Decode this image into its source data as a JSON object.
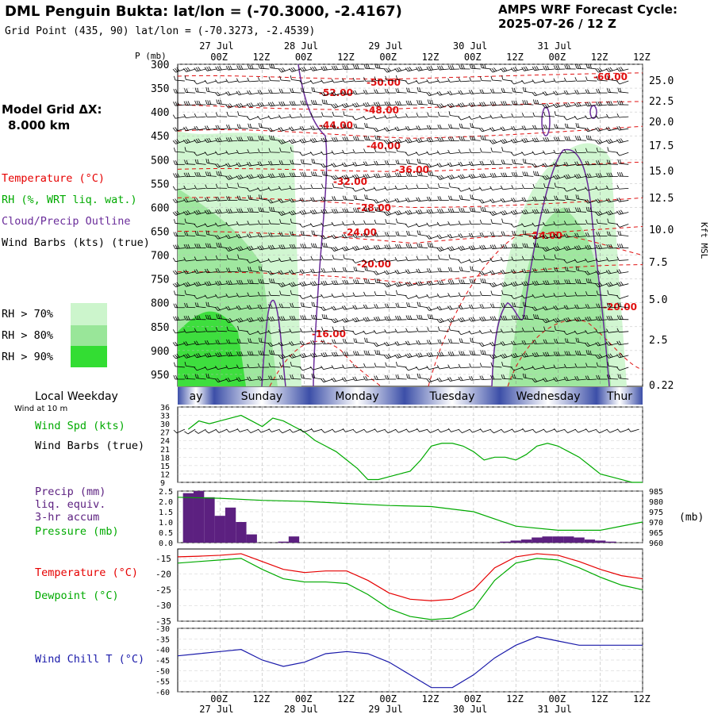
{
  "header": {
    "title": "DML Penguin Bukta:  lat/lon = (-70.3000, -2.4167)",
    "subtitle": "Grid Point (435, 90) lat/lon = (-70.3273, -2.4539)",
    "cycle_line1": "AMPS WRF Forecast Cycle:",
    "cycle_line2": "2025-07-26 / 12  Z"
  },
  "left_panel": {
    "model_grid_label": "Model Grid ΔX:",
    "model_grid_value": "8.000 km",
    "temperature_label": "Temperature (°C)",
    "rh_label": "RH (%, WRT liq. wat.)",
    "cloud_label": "Cloud/Precip Outline",
    "wind_label": "Wind Barbs (kts) (true)",
    "rh_legend": [
      {
        "label": "RH > 70%",
        "color": "#ccf5cc"
      },
      {
        "label": "RH > 80%",
        "color": "#99e699"
      },
      {
        "label": "RH > 90%",
        "color": "#33dd33"
      }
    ],
    "local_weekday": "Local Weekday",
    "wind_at": "Wind at 10 m",
    "wind_spd_label": "Wind Spd (kts)",
    "wind_barbs_label": "Wind Barbs (true)",
    "precip_label_1": "Precip (mm)",
    "precip_label_2": "liq. equiv.",
    "precip_label_3": "3-hr accum",
    "pressure_label": "Pressure (mb)",
    "temp2_label": "Temperature (°C)",
    "dewpoint_label": "Dewpoint (°C)",
    "windchill_label": "Wind Chill T (°C)"
  },
  "colors": {
    "temperature": "#e60000",
    "rh": "#00aa00",
    "cloud": "#6a2c9a",
    "wind": "#000000",
    "precip": "#5c2080",
    "windchill": "#1a1aaa",
    "temp_contour": "#e01010",
    "weekday_band": "#3c4fa8"
  },
  "time_axis": {
    "top_dates": [
      "27 Jul",
      "28 Jul",
      "29 Jul",
      "30 Jul",
      "31 Jul"
    ],
    "hours": [
      "00Z",
      "12Z",
      "00Z",
      "12Z",
      "00Z",
      "12Z",
      "00Z",
      "12Z",
      "00Z",
      "12Z"
    ],
    "bottom_dates": [
      "27 Jul",
      "28 Jul",
      "29 Jul",
      "30 Jul",
      "31 Jul"
    ],
    "weekdays": [
      "ay",
      "Sunday",
      "Monday",
      "Tuesday",
      "Wednesday",
      "Thur"
    ]
  },
  "chart_data": [
    {
      "type": "heatmap",
      "panel": "time-height cross-section",
      "y_left_label": "P (mb)",
      "y_left_ticks": [
        "300",
        "350",
        "400",
        "450",
        "500",
        "550",
        "600",
        "650",
        "700",
        "750",
        "800",
        "850",
        "900",
        "950"
      ],
      "y_right_label": "Kft MSL",
      "y_right_ticks": [
        "25.0",
        "22.5",
        "20.0",
        "17.5",
        "15.0",
        "12.5",
        "10.0",
        "7.5",
        "5.0",
        "2.5",
        "0.22"
      ],
      "temperature_contour_labels": [
        "-60.00",
        "-52.00",
        "-50.00",
        "-48.00",
        "-44.00",
        "-40.00",
        "-36.00",
        "-32.00",
        "-28.00",
        "-24.00",
        "-20.00",
        "-16.00",
        "-24.00",
        "-20.00",
        "-60.00"
      ]
    },
    {
      "type": "line",
      "panel": "wind speed",
      "ylabel": "Wind Spd (kts)",
      "y_ticks": [
        "36",
        "33",
        "30",
        "27",
        "24",
        "21",
        "18",
        "15",
        "12",
        "9"
      ],
      "ylim": [
        9,
        36
      ],
      "x_hours": [
        -9,
        -6,
        -3,
        0,
        3,
        6,
        9,
        12,
        15,
        18,
        21,
        24,
        27,
        30,
        33,
        36,
        39,
        42,
        45,
        48,
        51,
        54,
        57,
        60,
        63,
        66,
        69,
        72,
        75,
        78,
        81,
        84,
        87,
        90,
        93,
        96,
        99,
        102,
        105,
        108,
        111,
        114,
        117,
        120
      ],
      "values": [
        28,
        31,
        30,
        31,
        32,
        33,
        31,
        29,
        32,
        31,
        29,
        27,
        24,
        22,
        20,
        17,
        14,
        10,
        10,
        11,
        12,
        13,
        17,
        22,
        23,
        23,
        22,
        20,
        17,
        18,
        18,
        17,
        19,
        22,
        23,
        22,
        20,
        18,
        15,
        12,
        11,
        10,
        9,
        9
      ]
    },
    {
      "type": "bar",
      "panel": "precip and pressure",
      "ylabel_left": "Precip (mm)",
      "y_left_ticks": [
        "2.5",
        "2.0",
        "1.5",
        "1.0",
        "0.5",
        "0.0"
      ],
      "ylim_left": [
        0,
        2.5
      ],
      "ylabel_right": "(mb)",
      "y_right_ticks": [
        "985",
        "980",
        "975",
        "970",
        "965",
        "960"
      ],
      "ylim_right": [
        960,
        985
      ],
      "precip_x_hours": [
        -9,
        -6,
        -3,
        0,
        3,
        6,
        9,
        12,
        15,
        18,
        21,
        24,
        27,
        30,
        33,
        36,
        39,
        42,
        45,
        48,
        51,
        54,
        57,
        60,
        63,
        66,
        69,
        72,
        75,
        78,
        81,
        84,
        87,
        90,
        93,
        96,
        99,
        102,
        105,
        108,
        111,
        114,
        117
      ],
      "precip_values": [
        2.4,
        2.5,
        2.2,
        1.3,
        1.7,
        1.0,
        0.4,
        0.0,
        0.0,
        0.05,
        0.3,
        0.0,
        0.0,
        0.0,
        0.0,
        0.0,
        0.0,
        0.0,
        0.0,
        0.0,
        0.0,
        0.0,
        0.0,
        0.0,
        0.0,
        0.0,
        0.0,
        0.0,
        0.0,
        0.0,
        0.05,
        0.1,
        0.15,
        0.25,
        0.3,
        0.3,
        0.3,
        0.25,
        0.15,
        0.1,
        0.05,
        0.0,
        0.0
      ],
      "pressure_x_hours": [
        -12,
        0,
        12,
        24,
        36,
        48,
        60,
        72,
        84,
        96,
        108,
        120
      ],
      "pressure_values": [
        982,
        981.5,
        980.5,
        980,
        979,
        978,
        977.5,
        975,
        968,
        966,
        966,
        970
      ]
    },
    {
      "type": "line",
      "panel": "temperature and dewpoint",
      "ylabel": "Temperature (°C)",
      "y_ticks": [
        "-15",
        "-20",
        "-25",
        "-30",
        "-35"
      ],
      "ylim": [
        -35,
        -12
      ],
      "x_hours": [
        -12,
        -6,
        0,
        6,
        12,
        18,
        24,
        30,
        36,
        42,
        48,
        54,
        60,
        66,
        72,
        78,
        84,
        90,
        96,
        102,
        108,
        114,
        120
      ],
      "series": [
        {
          "name": "Temperature (°C)",
          "values": [
            -14.5,
            -14.3,
            -14.0,
            -13.5,
            -16.0,
            -18.5,
            -19.5,
            -19.0,
            -19.0,
            -22.0,
            -26.0,
            -28.0,
            -28.5,
            -28.0,
            -25.0,
            -18.0,
            -14.5,
            -13.5,
            -14.0,
            -16.0,
            -18.5,
            -20.5,
            -21.5
          ]
        },
        {
          "name": "Dewpoint (°C)",
          "values": [
            -16.5,
            -16.0,
            -15.5,
            -15.0,
            -18.5,
            -21.5,
            -22.5,
            -22.5,
            -23.0,
            -26.5,
            -31.0,
            -33.5,
            -34.5,
            -34.0,
            -31.0,
            -22.0,
            -16.5,
            -15.0,
            -15.5,
            -18.0,
            -21.0,
            -23.5,
            -25.0
          ]
        }
      ]
    },
    {
      "type": "line",
      "panel": "wind chill",
      "ylabel": "Wind Chill T (°C)",
      "y_ticks": [
        "-30",
        "-35",
        "-40",
        "-45",
        "-50",
        "-55",
        "-60"
      ],
      "ylim": [
        -60,
        -30
      ],
      "x_hours": [
        -12,
        -6,
        0,
        6,
        12,
        18,
        24,
        30,
        36,
        42,
        48,
        54,
        60,
        66,
        72,
        78,
        84,
        90,
        96,
        102,
        108,
        114,
        120
      ],
      "values": [
        -43,
        -42,
        -41,
        -40,
        -45,
        -48,
        -46,
        -42,
        -41,
        -42,
        -46,
        -52,
        -58,
        -58,
        -52,
        -44,
        -38,
        -34,
        -36,
        -38,
        -38,
        -38,
        -38
      ]
    }
  ]
}
